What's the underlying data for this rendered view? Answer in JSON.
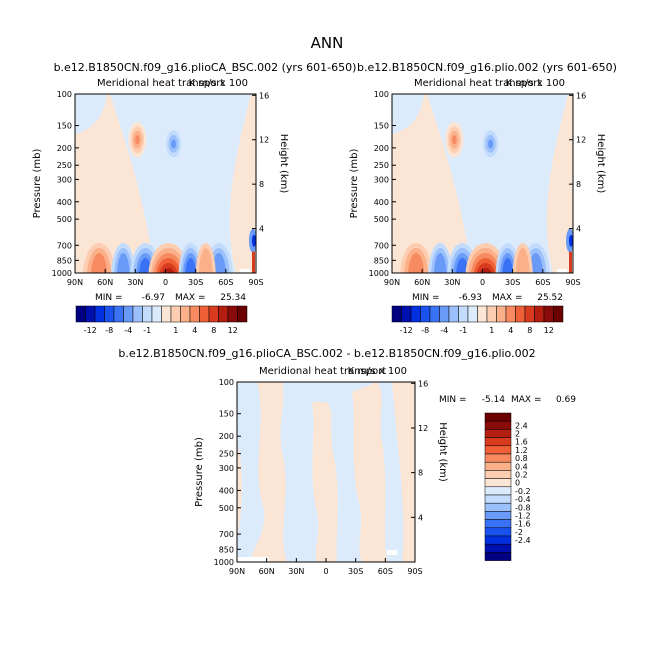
{
  "page_title": "ANN",
  "colors": {
    "neg": [
      "#000080",
      "#0010b0",
      "#0030e0",
      "#1a52f0",
      "#3a72f5",
      "#6a9af8",
      "#9cc0fb",
      "#c4dcfc",
      "#dcebfc"
    ],
    "pos": [
      "#fbe6d6",
      "#fccdb0",
      "#fbb08a",
      "#f78a60",
      "#ef6037",
      "#d83b1e",
      "#b41e10",
      "#8a0c0a",
      "#6b0000"
    ],
    "difference": {
      "neg": "#dcebfc",
      "pos": "#fbe6d6",
      "bg": "#ffffff"
    }
  },
  "chart_data": [
    {
      "type": "heatmap",
      "case_title": "b.e12.B1850CN.f09_g16.plioCA_BSC.002 (yrs 601-650)",
      "subtitle": "Meridional heat transport",
      "units": "K m/s x 100",
      "ylabel": "Pressure (mb)",
      "ylabel_right": "Height (km)",
      "pressure_ticks": [
        "100",
        "150",
        "200",
        "250",
        "300",
        "400",
        "500",
        "700",
        "850",
        "1000"
      ],
      "pressure_values": [
        100,
        150,
        200,
        250,
        300,
        400,
        500,
        700,
        850,
        1000
      ],
      "height_ticks": [
        "16",
        "12",
        "8",
        "4"
      ],
      "height_values": [
        16,
        12,
        8,
        4
      ],
      "lat_ticks": [
        "90N",
        "60N",
        "30N",
        "0",
        "30S",
        "60S",
        "90S"
      ],
      "lat_values": [
        90,
        60,
        30,
        0,
        -30,
        -60,
        -90
      ],
      "min_label": "MIN =",
      "min": "-6.97",
      "max_label": "MAX =",
      "max": "25.34",
      "colorbar": {
        "orientation": "horizontal",
        "labels": [
          "-12",
          "-8",
          "-4",
          "-1",
          "1",
          "4",
          "8",
          "12"
        ]
      }
    },
    {
      "type": "heatmap",
      "case_title": "b.e12.B1850CN.f09_g16.plio.002 (yrs 601-650)",
      "subtitle": "Meridional heat transport",
      "units": "K m/s x 100",
      "ylabel": "Pressure (mb)",
      "ylabel_right": "Height (km)",
      "pressure_ticks": [
        "100",
        "150",
        "200",
        "250",
        "300",
        "400",
        "500",
        "700",
        "850",
        "1000"
      ],
      "pressure_values": [
        100,
        150,
        200,
        250,
        300,
        400,
        500,
        700,
        850,
        1000
      ],
      "height_ticks": [
        "16",
        "12",
        "8",
        "4"
      ],
      "height_values": [
        16,
        12,
        8,
        4
      ],
      "lat_ticks": [
        "90N",
        "60N",
        "30N",
        "0",
        "30S",
        "60S",
        "90S"
      ],
      "lat_values": [
        90,
        60,
        30,
        0,
        -30,
        -60,
        -90
      ],
      "min_label": "MIN =",
      "min": "-6.93",
      "max_label": "MAX =",
      "max": "25.52",
      "colorbar": {
        "orientation": "horizontal",
        "labels": [
          "-12",
          "-8",
          "-4",
          "-1",
          "1",
          "4",
          "8",
          "12"
        ]
      }
    },
    {
      "type": "heatmap",
      "case_title": "b.e12.B1850CN.f09_g16.plioCA_BSC.002 - b.e12.B1850CN.f09_g16.plio.002",
      "subtitle": "Meridional heat transport",
      "units": "K m/s x 100",
      "ylabel": "Pressure (mb)",
      "ylabel_right": "Height (km)",
      "pressure_ticks": [
        "100",
        "150",
        "200",
        "250",
        "300",
        "400",
        "500",
        "700",
        "850",
        "1000"
      ],
      "pressure_values": [
        100,
        150,
        200,
        250,
        300,
        400,
        500,
        700,
        850,
        1000
      ],
      "height_ticks": [
        "16",
        "12",
        "8",
        "4"
      ],
      "height_values": [
        16,
        12,
        8,
        4
      ],
      "lat_ticks": [
        "90N",
        "60N",
        "30N",
        "0",
        "30S",
        "60S",
        "90S"
      ],
      "lat_values": [
        90,
        60,
        30,
        0,
        -30,
        -60,
        -90
      ],
      "min_label": "MIN =",
      "min": "-5.14",
      "max_label": "MAX =",
      "max": "0.69",
      "colorbar": {
        "orientation": "vertical",
        "labels": [
          "2.4",
          "2",
          "1.6",
          "1.2",
          "0.8",
          "0.4",
          "0.2",
          "0",
          "-0.2",
          "-0.4",
          "-0.8",
          "-1.2",
          "-1.6",
          "-2",
          "-2.4"
        ]
      }
    }
  ]
}
